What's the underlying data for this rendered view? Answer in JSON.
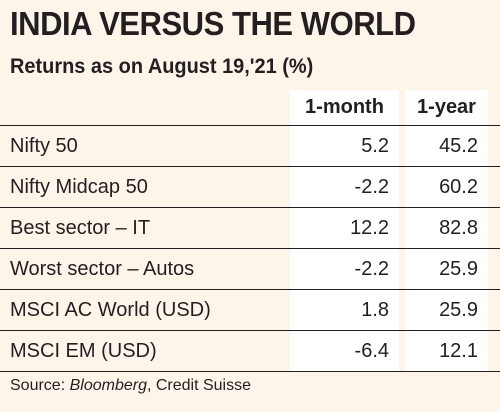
{
  "title": "INDIA VERSUS THE WORLD",
  "subtitle": "Returns as on August 19,'21 (%)",
  "chart_data": {
    "type": "table",
    "columns": [
      "1-month",
      "1-year"
    ],
    "rows": [
      {
        "label": "Nifty 50",
        "values": [
          "5.2",
          "45.2"
        ]
      },
      {
        "label": "Nifty Midcap 50",
        "values": [
          "-2.2",
          "60.2"
        ]
      },
      {
        "label": "Best sector – IT",
        "values": [
          "12.2",
          "82.8"
        ]
      },
      {
        "label": "Worst sector – Autos",
        "values": [
          "-2.2",
          "25.9"
        ]
      },
      {
        "label": "MSCI AC World (USD)",
        "values": [
          "1.8",
          "25.9"
        ]
      },
      {
        "label": "MSCI EM (USD)",
        "values": [
          "-6.4",
          "12.1"
        ]
      }
    ]
  },
  "source": {
    "prefix": "Source: ",
    "italic": "Bloomberg",
    "suffix": ", Credit Suisse"
  }
}
